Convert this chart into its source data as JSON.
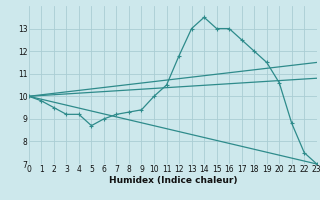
{
  "background_color": "#cde8ec",
  "grid_color": "#aacdd4",
  "line_color": "#2e8b8b",
  "xlabel": "Humidex (Indice chaleur)",
  "xlim": [
    0,
    23
  ],
  "ylim": [
    7,
    14
  ],
  "yticks": [
    7,
    8,
    9,
    10,
    11,
    12,
    13
  ],
  "xticks": [
    0,
    1,
    2,
    3,
    4,
    5,
    6,
    7,
    8,
    9,
    10,
    11,
    12,
    13,
    14,
    15,
    16,
    17,
    18,
    19,
    20,
    21,
    22,
    23
  ],
  "series1_x": [
    0,
    1,
    2,
    3,
    4,
    5,
    6,
    7,
    8,
    9,
    10,
    11,
    12,
    13,
    14,
    15,
    16,
    17,
    18,
    19,
    20,
    21,
    22,
    23
  ],
  "series1_y": [
    10.0,
    9.8,
    9.5,
    9.2,
    9.2,
    8.7,
    9.0,
    9.2,
    9.3,
    9.4,
    10.0,
    10.5,
    11.8,
    13.0,
    13.5,
    13.0,
    13.0,
    12.5,
    12.0,
    11.5,
    10.6,
    8.8,
    7.5,
    7.0
  ],
  "series2_x": [
    0,
    23
  ],
  "series2_y": [
    10.0,
    11.5
  ],
  "series3_x": [
    0,
    23
  ],
  "series3_y": [
    10.0,
    10.8
  ],
  "series4_x": [
    0,
    23
  ],
  "series4_y": [
    10.0,
    7.0
  ],
  "tick_fontsize": 5.5,
  "xlabel_fontsize": 6.5
}
